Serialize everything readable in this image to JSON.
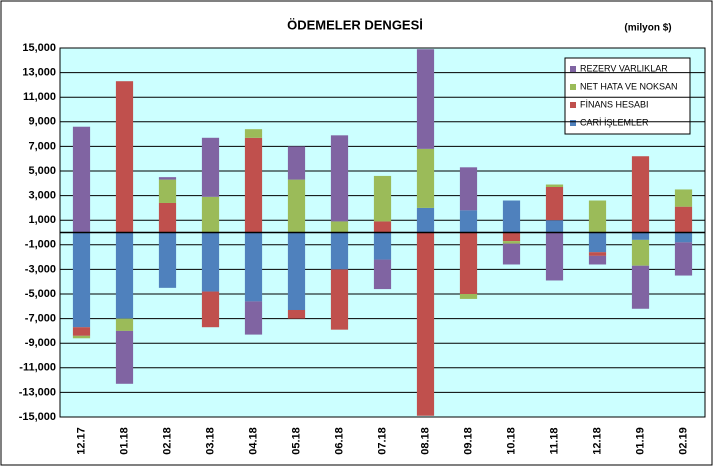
{
  "chart_data": {
    "type": "bar",
    "stacked": true,
    "title": "ÖDEMELER DENGESİ",
    "subtitle": "(milyon $)",
    "categories": [
      "12.17",
      "01.18",
      "02.18",
      "03.18",
      "04.18",
      "05.18",
      "06.18",
      "07.18",
      "08.18",
      "09.18",
      "10.18",
      "11.18",
      "12.18",
      "01.19",
      "02.19"
    ],
    "series": [
      {
        "name": "CARİ İŞLEMLER",
        "color": "#4f81bd",
        "values": [
          -7700,
          -7000,
          -4500,
          -4800,
          -5600,
          -6300,
          -3000,
          -2200,
          2000,
          1800,
          2600,
          1000,
          -1600,
          -600,
          -800
        ]
      },
      {
        "name": "FİNANS HESABI",
        "color": "#c0504d",
        "values": [
          -700,
          12300,
          2400,
          -2900,
          7700,
          -700,
          -4900,
          900,
          -14900,
          -5000,
          -700,
          2700,
          -300,
          6200,
          2100
        ]
      },
      {
        "name": "NET HATA VE NOKSAN",
        "color": "#9bbb59",
        "values": [
          -200,
          -1000,
          1900,
          2900,
          700,
          4300,
          900,
          3700,
          4800,
          -400,
          -200,
          200,
          2600,
          -2100,
          1400
        ]
      },
      {
        "name": "REZERV VARLIKLAR",
        "color": "#8064a2",
        "values": [
          8600,
          -4300,
          200,
          4800,
          -2700,
          2700,
          7000,
          -2400,
          8100,
          3500,
          -1700,
          -3900,
          -700,
          -3500,
          -2700
        ]
      }
    ],
    "ylim": [
      -15000,
      15000
    ],
    "yticks": [
      {
        "value": -15000,
        "label": "-15,000"
      },
      {
        "value": -13000,
        "label": "-13,000"
      },
      {
        "value": -11000,
        "label": "-11,000"
      },
      {
        "value": -9000,
        "label": "-9,000"
      },
      {
        "value": -7000,
        "label": "-7,000"
      },
      {
        "value": -5000,
        "label": "-5,000"
      },
      {
        "value": -3000,
        "label": "-3,000"
      },
      {
        "value": -1000,
        "label": "-1,000"
      },
      {
        "value": 1000,
        "label": "1,000"
      },
      {
        "value": 3000,
        "label": "3,000"
      },
      {
        "value": 5000,
        "label": "5,000"
      },
      {
        "value": 7000,
        "label": "7,000"
      },
      {
        "value": 9000,
        "label": "9,000"
      },
      {
        "value": 11000,
        "label": "11,000"
      },
      {
        "value": 13000,
        "label": "13,000"
      },
      {
        "value": 15000,
        "label": "15,000"
      }
    ],
    "grid": true,
    "legend": "upper right"
  }
}
